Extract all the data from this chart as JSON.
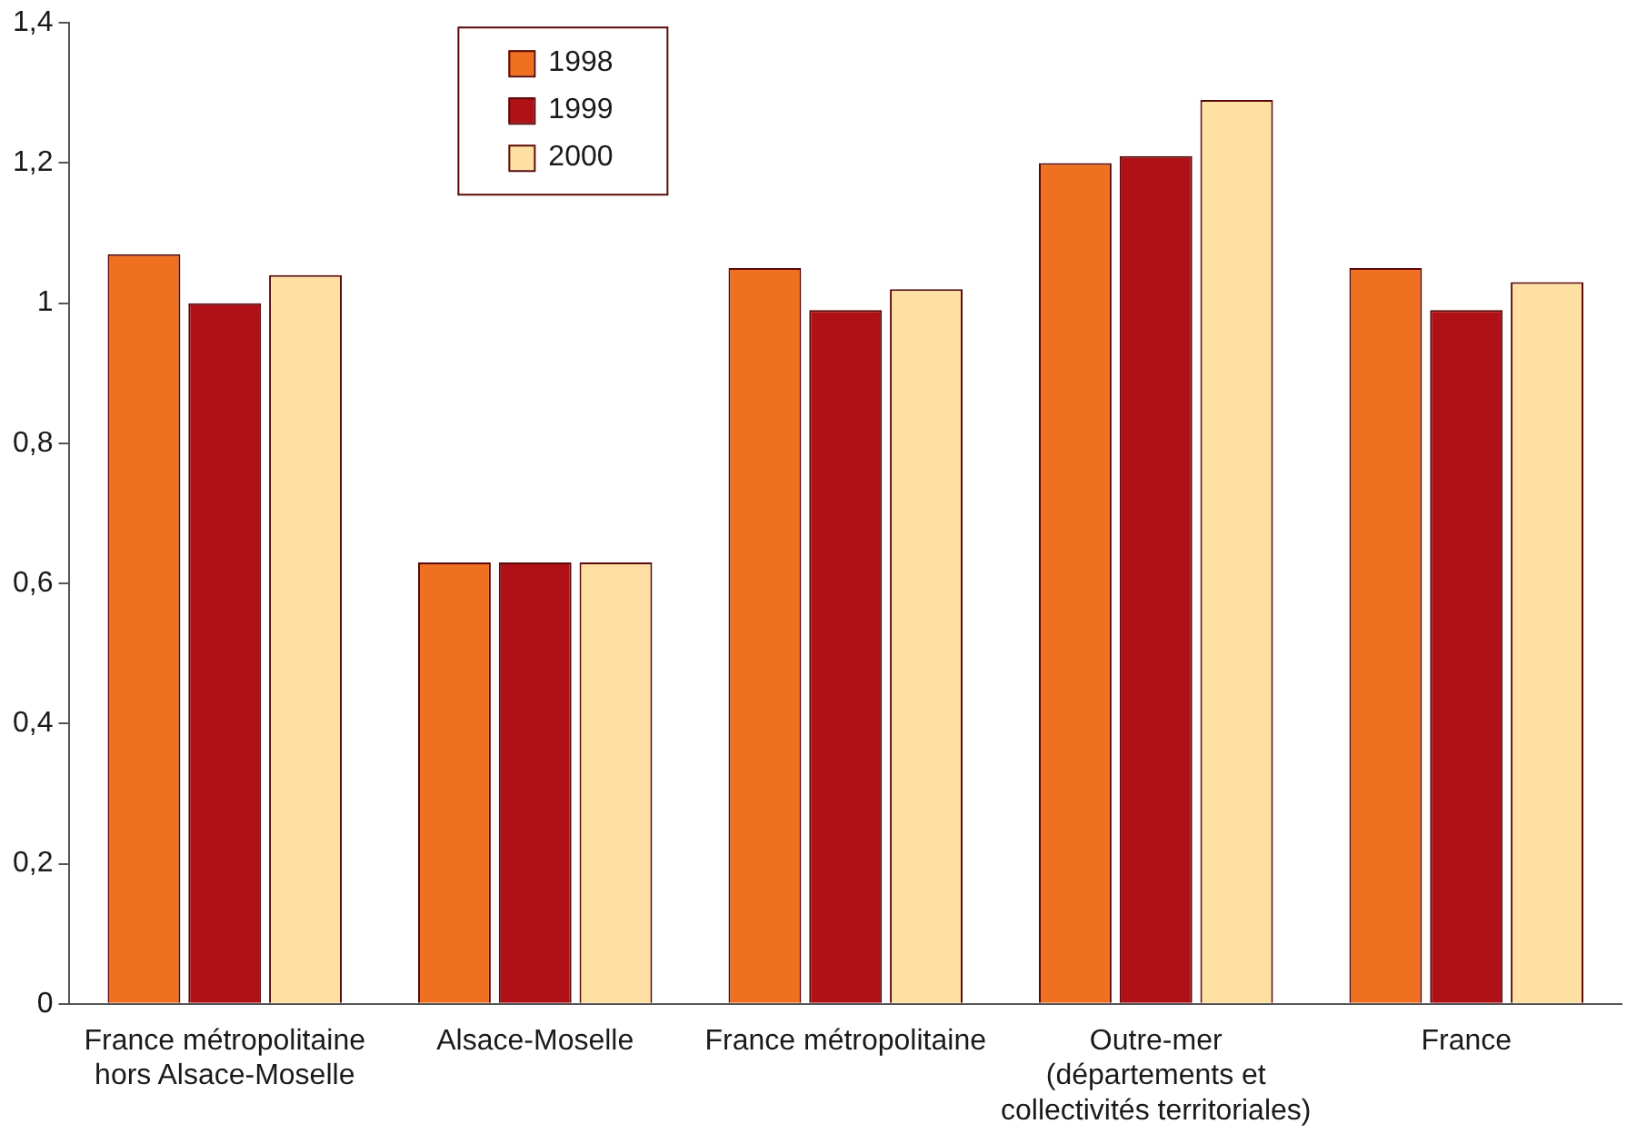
{
  "chart_data": {
    "type": "bar",
    "categories": [
      "France métropolitaine hors Alsace-Moselle",
      "Alsace-Moselle",
      "France métropolitaine",
      "Outre-mer (départements et collectivités territoriales)",
      "France"
    ],
    "series": [
      {
        "name": "1998",
        "color": "#f07022",
        "values": [
          1.07,
          0.63,
          1.05,
          1.2,
          1.05
        ]
      },
      {
        "name": "1999",
        "color": "#b01117",
        "values": [
          1.0,
          0.63,
          0.99,
          1.21,
          0.99
        ]
      },
      {
        "name": "2000",
        "color": "#fee0a2",
        "values": [
          1.04,
          0.63,
          1.02,
          1.29,
          1.03
        ]
      }
    ],
    "ylim": [
      0,
      1.4
    ],
    "yticks": [
      0,
      {
        "value": 0.2,
        "label": "0,2"
      },
      {
        "value": 0.4,
        "label": "0,4"
      },
      {
        "value": 0.6,
        "label": "0,6"
      },
      {
        "value": 0.8,
        "label": "0,8"
      },
      1,
      {
        "value": 1.2,
        "label": "1,2"
      },
      {
        "value": 1.4,
        "label": "1,4"
      }
    ],
    "grid": false,
    "legend": "top left"
  }
}
